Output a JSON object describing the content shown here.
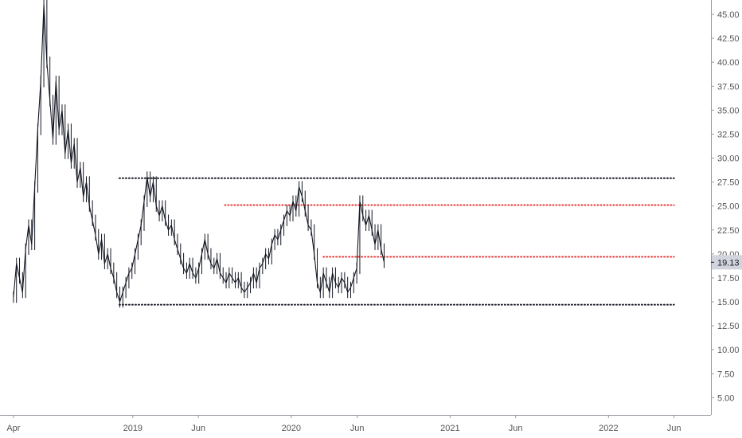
{
  "chart_data": {
    "type": "line",
    "style": "ohlc-bars",
    "y_axis_side": "right",
    "ylim": [
      3.2,
      46.5
    ],
    "y_ticks": [
      "5.00",
      "7.50",
      "10.00",
      "12.50",
      "15.00",
      "17.50",
      "20.00",
      "22.50",
      "25.00",
      "27.50",
      "30.00",
      "32.50",
      "35.00",
      "37.50",
      "40.00",
      "42.50",
      "45.00"
    ],
    "x_range": [
      "2018-03-01",
      "2022-08-25"
    ],
    "x_ticks": [
      {
        "date": "2018-04-01",
        "label": "Apr"
      },
      {
        "date": "2019-01-01",
        "label": "2019"
      },
      {
        "date": "2019-06-01",
        "label": "Jun"
      },
      {
        "date": "2020-01-01",
        "label": "2020"
      },
      {
        "date": "2020-06-01",
        "label": "Jun"
      },
      {
        "date": "2021-01-01",
        "label": "2021"
      },
      {
        "date": "2021-06-01",
        "label": "Jun"
      },
      {
        "date": "2022-01-01",
        "label": "2022"
      },
      {
        "date": "2022-06-01",
        "label": "Jun"
      }
    ],
    "current_price": {
      "value": 19.13,
      "label": "19.13"
    },
    "series": [
      {
        "color": "#131722",
        "points": [
          [
            "2018-04-01",
            15.5
          ],
          [
            "2018-04-08",
            19.0
          ],
          [
            "2018-04-15",
            17.5
          ],
          [
            "2018-04-22",
            16.0
          ],
          [
            "2018-04-29",
            20.5
          ],
          [
            "2018-05-06",
            23.0
          ],
          [
            "2018-05-13",
            21.0
          ],
          [
            "2018-05-20",
            27.0
          ],
          [
            "2018-05-27",
            33.0
          ],
          [
            "2018-06-03",
            38.0
          ],
          [
            "2018-06-10",
            46.0
          ],
          [
            "2018-06-17",
            40.0
          ],
          [
            "2018-06-24",
            36.0
          ],
          [
            "2018-07-01",
            32.0
          ],
          [
            "2018-07-08",
            38.0
          ],
          [
            "2018-07-15",
            33.0
          ],
          [
            "2018-07-22",
            35.0
          ],
          [
            "2018-07-29",
            30.5
          ],
          [
            "2018-08-05",
            33.0
          ],
          [
            "2018-08-12",
            29.5
          ],
          [
            "2018-08-19",
            31.5
          ],
          [
            "2018-08-26",
            27.5
          ],
          [
            "2018-09-02",
            29.0
          ],
          [
            "2018-09-09",
            26.0
          ],
          [
            "2018-09-16",
            27.5
          ],
          [
            "2018-09-23",
            25.0
          ],
          [
            "2018-09-30",
            23.5
          ],
          [
            "2018-10-07",
            22.0
          ],
          [
            "2018-10-14",
            20.0
          ],
          [
            "2018-10-21",
            21.5
          ],
          [
            "2018-10-28",
            19.0
          ],
          [
            "2018-11-04",
            20.0
          ],
          [
            "2018-11-11",
            18.5
          ],
          [
            "2018-11-18",
            17.5
          ],
          [
            "2018-11-25",
            16.0
          ],
          [
            "2018-12-02",
            15.0
          ],
          [
            "2018-12-09",
            16.0
          ],
          [
            "2018-12-16",
            17.0
          ],
          [
            "2018-12-23",
            18.0
          ],
          [
            "2018-12-30",
            18.5
          ],
          [
            "2019-01-06",
            20.0
          ],
          [
            "2019-01-13",
            21.5
          ],
          [
            "2019-01-20",
            23.0
          ],
          [
            "2019-01-27",
            25.5
          ],
          [
            "2019-02-03",
            28.0
          ],
          [
            "2019-02-10",
            26.0
          ],
          [
            "2019-02-17",
            27.5
          ],
          [
            "2019-02-24",
            25.0
          ],
          [
            "2019-03-03",
            24.0
          ],
          [
            "2019-03-10",
            25.0
          ],
          [
            "2019-03-17",
            23.5
          ],
          [
            "2019-03-24",
            22.5
          ],
          [
            "2019-03-31",
            23.0
          ],
          [
            "2019-04-07",
            21.5
          ],
          [
            "2019-04-14",
            20.5
          ],
          [
            "2019-04-21",
            19.5
          ],
          [
            "2019-04-28",
            18.5
          ],
          [
            "2019-05-05",
            18.0
          ],
          [
            "2019-05-12",
            19.0
          ],
          [
            "2019-05-19",
            18.0
          ],
          [
            "2019-05-26",
            17.5
          ],
          [
            "2019-06-02",
            18.5
          ],
          [
            "2019-06-09",
            20.0
          ],
          [
            "2019-06-16",
            21.5
          ],
          [
            "2019-06-23",
            20.0
          ],
          [
            "2019-06-30",
            19.0
          ],
          [
            "2019-07-07",
            18.5
          ],
          [
            "2019-07-14",
            19.5
          ],
          [
            "2019-07-21",
            18.0
          ],
          [
            "2019-07-28",
            17.5
          ],
          [
            "2019-08-04",
            17.0
          ],
          [
            "2019-08-11",
            18.0
          ],
          [
            "2019-08-18",
            17.5
          ],
          [
            "2019-08-25",
            17.0
          ],
          [
            "2019-09-01",
            17.5
          ],
          [
            "2019-09-08",
            16.5
          ],
          [
            "2019-09-15",
            16.0
          ],
          [
            "2019-09-22",
            16.5
          ],
          [
            "2019-09-29",
            17.0
          ],
          [
            "2019-10-06",
            18.0
          ],
          [
            "2019-10-13",
            17.0
          ],
          [
            "2019-10-20",
            18.5
          ],
          [
            "2019-10-27",
            19.0
          ],
          [
            "2019-11-03",
            20.0
          ],
          [
            "2019-11-10",
            19.5
          ],
          [
            "2019-11-17",
            21.0
          ],
          [
            "2019-11-24",
            22.0
          ],
          [
            "2019-12-01",
            21.5
          ],
          [
            "2019-12-08",
            22.5
          ],
          [
            "2019-12-15",
            23.5
          ],
          [
            "2019-12-22",
            24.5
          ],
          [
            "2019-12-29",
            24.0
          ],
          [
            "2020-01-05",
            25.5
          ],
          [
            "2020-01-12",
            24.5
          ],
          [
            "2020-01-19",
            27.0
          ],
          [
            "2020-01-26",
            26.0
          ],
          [
            "2020-02-02",
            24.5
          ],
          [
            "2020-02-09",
            23.0
          ],
          [
            "2020-02-16",
            22.5
          ],
          [
            "2020-02-23",
            20.0
          ],
          [
            "2020-03-01",
            17.0
          ],
          [
            "2020-03-08",
            16.0
          ],
          [
            "2020-03-15",
            18.0
          ],
          [
            "2020-03-22",
            17.0
          ],
          [
            "2020-03-29",
            16.0
          ],
          [
            "2020-04-05",
            18.0
          ],
          [
            "2020-04-12",
            17.0
          ],
          [
            "2020-04-19",
            16.5
          ],
          [
            "2020-04-26",
            17.5
          ],
          [
            "2020-05-03",
            17.0
          ],
          [
            "2020-05-10",
            16.0
          ],
          [
            "2020-05-17",
            16.5
          ],
          [
            "2020-05-24",
            17.5
          ],
          [
            "2020-05-31",
            18.5
          ],
          [
            "2020-06-07",
            25.5
          ],
          [
            "2020-06-14",
            24.0
          ],
          [
            "2020-06-21",
            23.0
          ],
          [
            "2020-06-28",
            24.0
          ],
          [
            "2020-07-05",
            22.5
          ],
          [
            "2020-07-12",
            21.0
          ],
          [
            "2020-07-19",
            22.5
          ],
          [
            "2020-07-26",
            20.5
          ],
          [
            "2020-08-02",
            19.13
          ]
        ]
      }
    ],
    "levels": [
      {
        "value": 27.9,
        "from": "2018-12-01",
        "to": "2022-06-01",
        "color": "#131722"
      },
      {
        "value": 25.1,
        "from": "2019-08-01",
        "to": "2022-06-01",
        "color": "#e53935"
      },
      {
        "value": 19.7,
        "from": "2020-03-15",
        "to": "2022-06-01",
        "color": "#e53935"
      },
      {
        "value": 14.7,
        "from": "2018-12-01",
        "to": "2022-06-01",
        "color": "#131722"
      }
    ]
  }
}
